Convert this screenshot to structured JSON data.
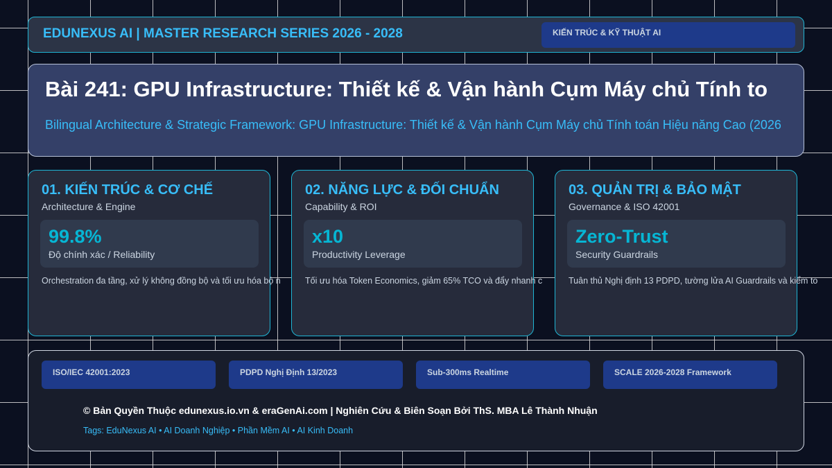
{
  "header": {
    "title": "EDUNEXUS AI | MASTER RESEARCH SERIES 2026 - 2028",
    "badge": "KIẾN TRÚC & KỸ THUẬT AI"
  },
  "hero": {
    "title": "Bài 241: GPU Infrastructure: Thiết kế & Vận hành Cụm Máy chủ Tính to",
    "subtitle": "Bilingual Architecture & Strategic Framework: GPU Infrastructure: Thiết kế & Vận hành Cụm Máy chủ Tính toán Hiệu năng Cao (2026"
  },
  "cards": [
    {
      "title": "01. KIẾN TRÚC & CƠ CHẾ",
      "subtitle": "Architecture & Engine",
      "metric": "99.8%",
      "metric_label": "Độ chính xác / Reliability",
      "description": "Orchestration đa tầng, xử lý không đồng bộ và tối ưu hóa bộ n"
    },
    {
      "title": "02. NĂNG LỰC & ĐỐI CHUẨN",
      "subtitle": "Capability & ROI",
      "metric": "x10",
      "metric_label": "Productivity Leverage",
      "description": "Tối ưu hóa Token Economics, giảm 65% TCO và đẩy nhanh c"
    },
    {
      "title": "03. QUẢN TRỊ & BẢO MẬT",
      "subtitle": "Governance & ISO 42001",
      "metric": "Zero-Trust",
      "metric_label": "Security Guardrails",
      "description": "Tuân thủ Nghị định 13 PDPD, tường lửa AI Guardrails và kiểm to"
    }
  ],
  "footer": {
    "badges": [
      "ISO/IEC 42001:2023",
      "PDPD Nghị Định 13/2023",
      "Sub-300ms Realtime",
      "SCALE 2026-2028 Framework"
    ],
    "copyright": "© Bản Quyền Thuộc edunexus.io.vn & eraGenAi.com | Nghiên Cứu & Biên Soạn Bởi ThS. MBA Lê Thành Nhuận",
    "tags": "Tags: EduNexus AI • AI Doanh Nghiệp • Phần Mềm AI • AI Kinh Doanh"
  }
}
